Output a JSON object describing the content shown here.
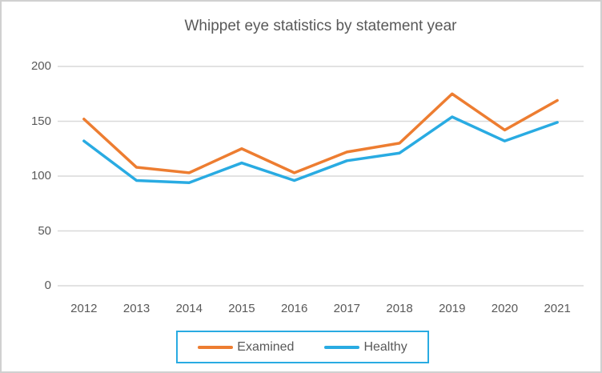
{
  "window": {
    "background": "#ffffff",
    "border_color": "#d0d0d0"
  },
  "chart_data": {
    "type": "line",
    "title": "Whippet eye statistics by statement year",
    "categories": [
      "2012",
      "2013",
      "2014",
      "2015",
      "2016",
      "2017",
      "2018",
      "2019",
      "2020",
      "2021"
    ],
    "series": [
      {
        "name": "Examined",
        "color": "#ED7D31",
        "values": [
          152,
          108,
          103,
          125,
          103,
          122,
          130,
          175,
          142,
          169
        ]
      },
      {
        "name": "Healthy",
        "color": "#29ABE2",
        "values": [
          132,
          96,
          94,
          112,
          96,
          114,
          121,
          154,
          132,
          149
        ]
      }
    ],
    "xlabel": "",
    "ylabel": "",
    "ylim": [
      0,
      200
    ],
    "yticks": [
      0,
      50,
      100,
      150,
      200
    ],
    "grid": true,
    "gridline_color": "#D9D9D9",
    "text_color": "#595959",
    "line_width": 3.5,
    "legend": {
      "position": "bottom",
      "border_color": "#29ABE2",
      "background": "#FFFFFF"
    }
  }
}
